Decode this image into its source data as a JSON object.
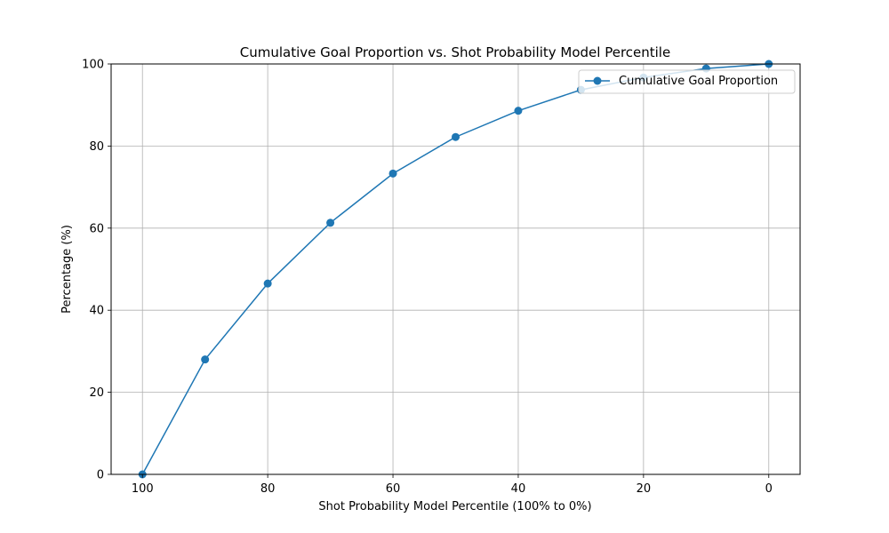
{
  "chart_data": {
    "type": "line",
    "title": "Cumulative Goal Proportion vs. Shot Probability Model Percentile",
    "xlabel": "Shot Probability Model Percentile (100% to 0%)",
    "ylabel": "Percentage (%)",
    "x_reversed": true,
    "xlim": [
      105,
      -5
    ],
    "ylim": [
      0,
      100
    ],
    "xticks": [
      100,
      80,
      60,
      40,
      20,
      0
    ],
    "yticks": [
      0,
      20,
      40,
      60,
      80,
      100
    ],
    "grid": true,
    "legend_position": "top-right",
    "series": [
      {
        "name": "Cumulative Goal Proportion",
        "color": "#1f77b4",
        "x": [
          100,
          90,
          80,
          70,
          60,
          50,
          40,
          30,
          20,
          10,
          0
        ],
        "y": [
          0,
          28,
          46.5,
          61.3,
          73.3,
          82.2,
          88.6,
          93.7,
          96.7,
          98.9,
          100
        ]
      }
    ]
  }
}
